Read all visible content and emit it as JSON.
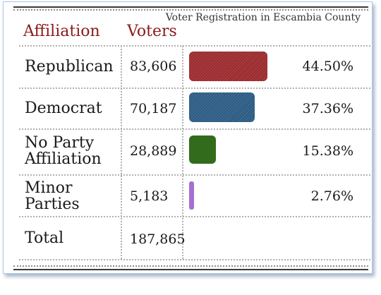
{
  "header": {
    "title": "Voter Registration in Escambia County",
    "col_affiliation": "Affiliation",
    "col_voters": "Voters"
  },
  "rows": [
    {
      "label": "Republican",
      "voters": "83,606",
      "percent": "44.50%"
    },
    {
      "label": "Democrat",
      "voters": "70,187",
      "percent": "37.36%"
    },
    {
      "label": "No Party Affiliation",
      "voters": "28,889",
      "percent": "15.38%"
    },
    {
      "label": "Minor Parties",
      "voters": "5,183",
      "percent": "2.76%"
    }
  ],
  "total": {
    "label": "Total",
    "voters": "187,865"
  },
  "colors": {
    "header_text": "#8b1a1a",
    "republican": "#9b2a2e",
    "democrat": "#2c5b83",
    "no_party": "#336b1c",
    "minor": "#a66fd0"
  },
  "chart_data": {
    "type": "bar",
    "title": "Voter Registration in Escambia County",
    "categories": [
      "Republican",
      "Democrat",
      "No Party Affiliation",
      "Minor Parties"
    ],
    "values": [
      83606,
      70187,
      28889,
      5183
    ],
    "percentages": [
      44.5,
      37.36,
      15.38,
      2.76
    ],
    "total": 187865,
    "orientation": "horizontal",
    "xlabel": "",
    "ylabel": "",
    "grid": false
  }
}
